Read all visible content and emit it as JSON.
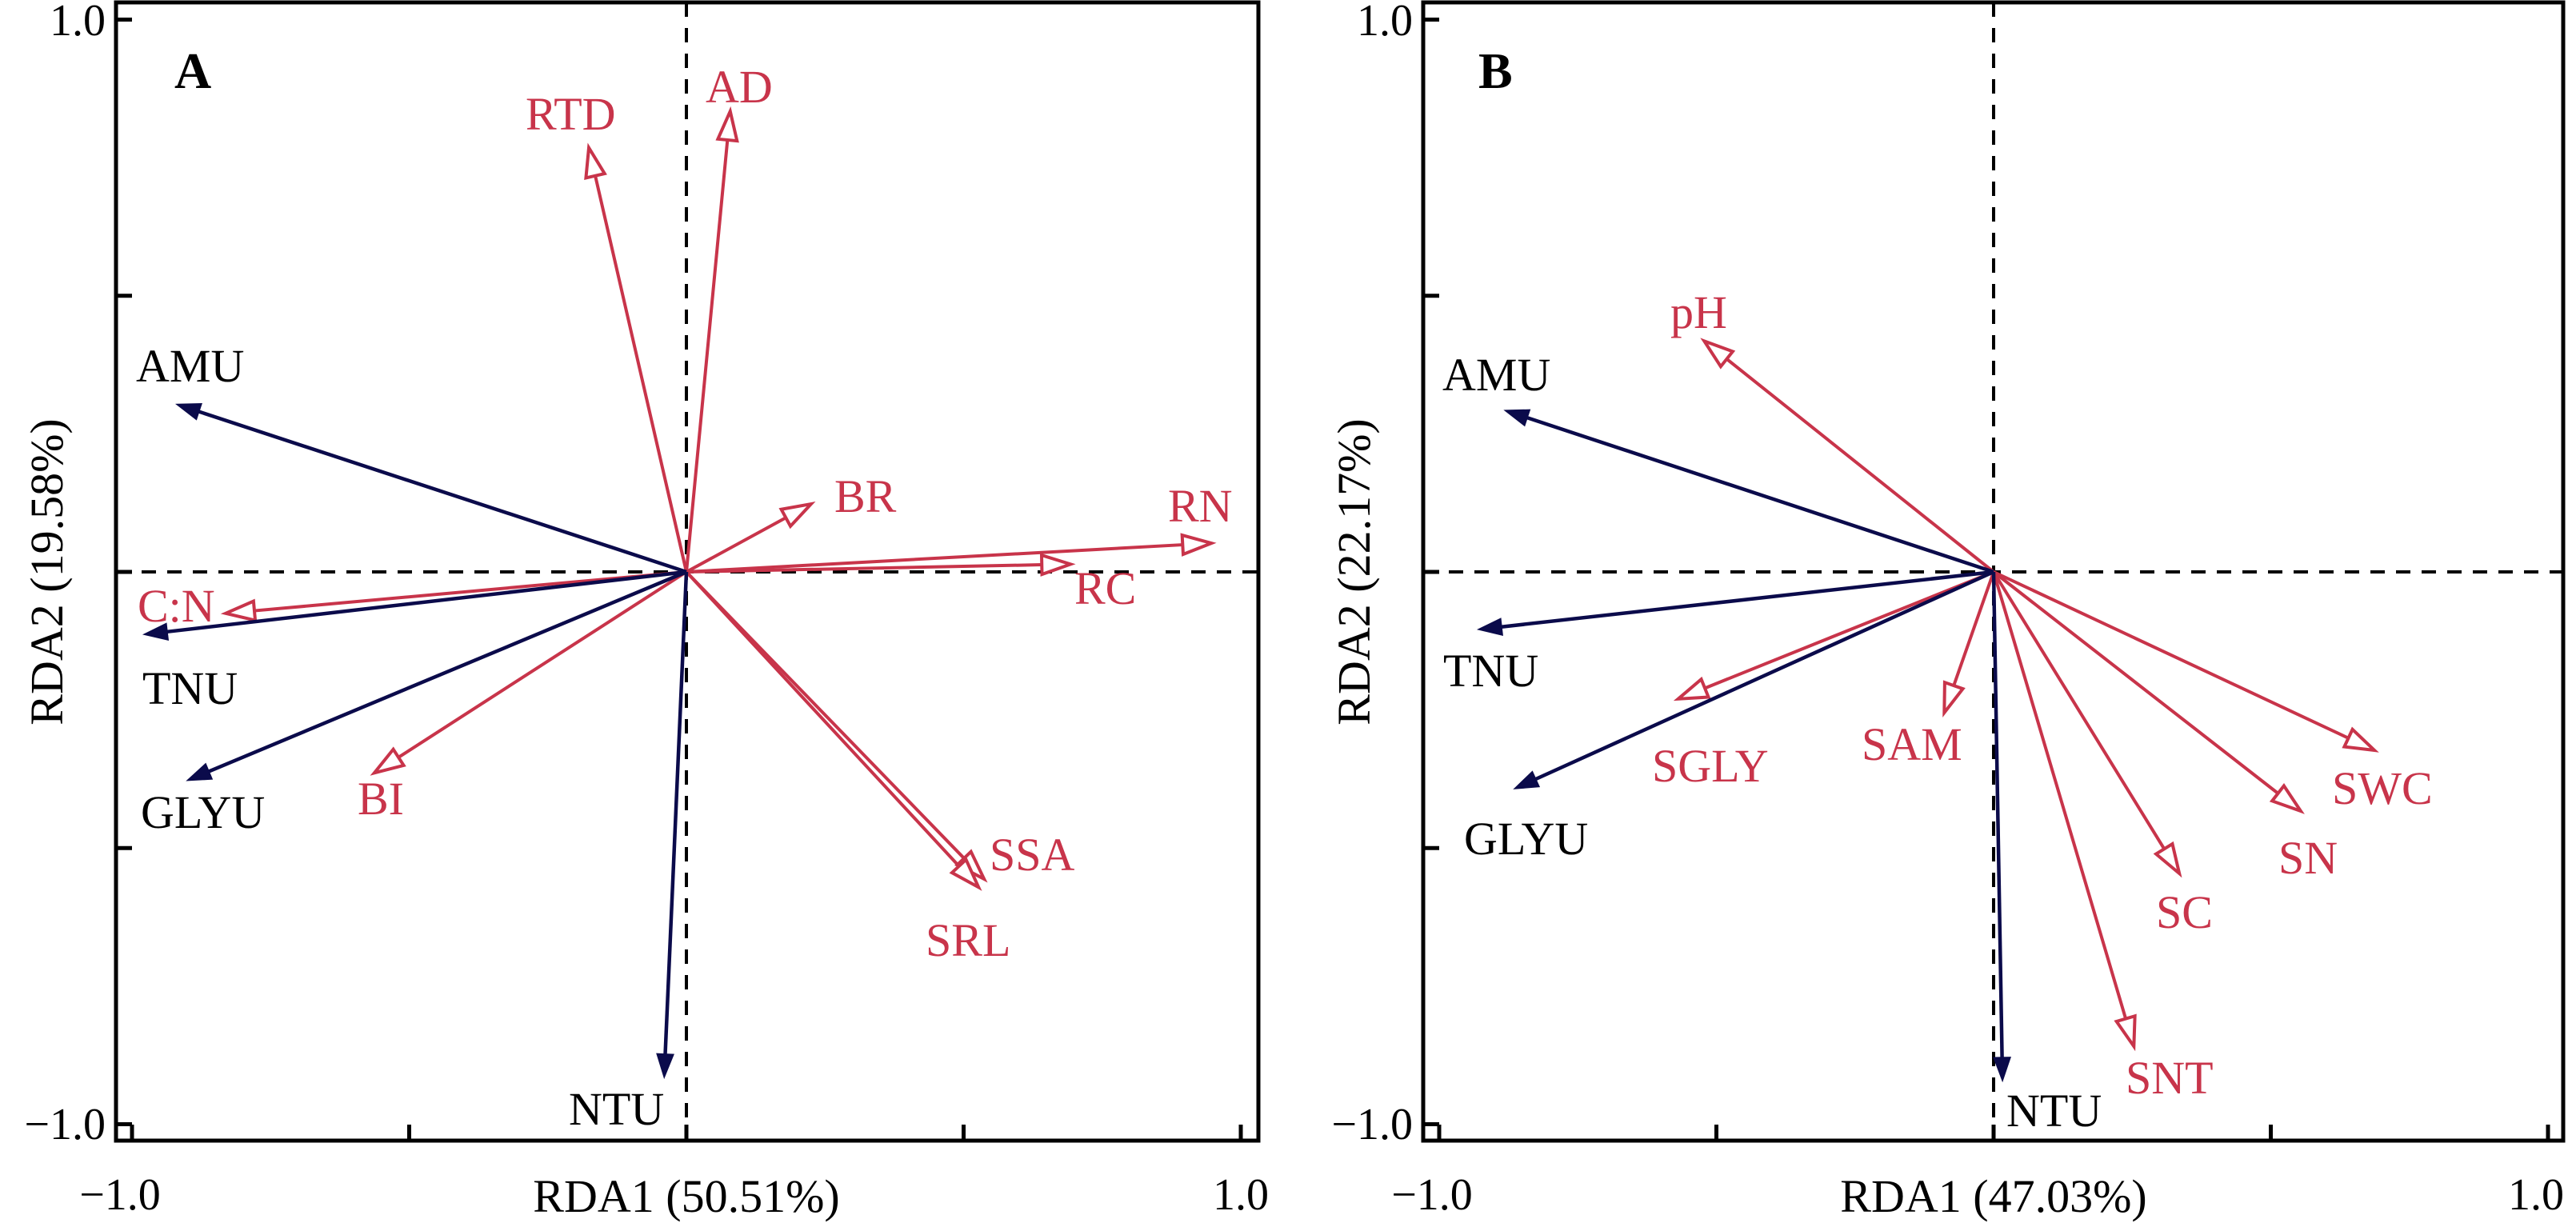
{
  "colors": {
    "response": "#0B0B4B",
    "explanatory": "#C8344A",
    "axis": "#000000"
  },
  "chart_data": [
    {
      "type": "biplot",
      "panel": "A",
      "xlabel": "RDA1 (50.51%)",
      "ylabel": "RDA2 (19.58%)",
      "xlim": [
        -1.0,
        1.0
      ],
      "ylim": [
        -1.0,
        1.0
      ],
      "xticks": [
        -1.0,
        -0.5,
        0,
        0.5,
        1.0
      ],
      "yticks": [
        -1.0,
        -0.5,
        0,
        0.5,
        1.0
      ],
      "xtick_labels": {
        "-1.0": "−1.0",
        "1.0": "1.0"
      },
      "ytick_labels": {
        "-1.0": "−1.0",
        "1.0": "1.0"
      },
      "zero_lines": "dashed",
      "response_vectors": [
        {
          "name": "AMU",
          "x": -0.918,
          "y": 0.303
        },
        {
          "name": "TNU",
          "x": -0.977,
          "y": -0.113
        },
        {
          "name": "GLYU",
          "x": -0.899,
          "y": -0.377
        },
        {
          "name": "NTU",
          "x": -0.04,
          "y": -0.914
        }
      ],
      "explanatory_vectors": [
        {
          "name": "RTD",
          "x": -0.176,
          "y": 0.768
        },
        {
          "name": "AD",
          "x": 0.079,
          "y": 0.834
        },
        {
          "name": "BR",
          "x": 0.225,
          "y": 0.123
        },
        {
          "name": "RN",
          "x": 0.947,
          "y": 0.052
        },
        {
          "name": "RC",
          "x": 0.693,
          "y": 0.014
        },
        {
          "name": "C:N",
          "x": -0.831,
          "y": -0.075
        },
        {
          "name": "BI",
          "x": -0.563,
          "y": -0.364
        },
        {
          "name": "SSA",
          "x": 0.537,
          "y": -0.556
        },
        {
          "name": "SRL",
          "x": 0.527,
          "y": -0.571
        }
      ]
    },
    {
      "type": "biplot",
      "panel": "B",
      "xlabel": "RDA1 (47.03%)",
      "ylabel": "RDA2 (22.17%)",
      "xlim": [
        -1.0,
        1.0
      ],
      "ylim": [
        -1.0,
        1.0
      ],
      "xticks": [
        -1.0,
        -0.5,
        0,
        0.5,
        1.0
      ],
      "yticks": [
        -1.0,
        -0.5,
        0,
        0.5,
        1.0
      ],
      "xtick_labels": {
        "-1.0": "−1.0",
        "1.0": "1.0"
      },
      "ytick_labels": {
        "-1.0": "−1.0",
        "1.0": "1.0"
      },
      "zero_lines": "dashed",
      "response_vectors": [
        {
          "name": "AMU",
          "x": -0.88,
          "y": 0.292
        },
        {
          "name": "TNU",
          "x": -0.928,
          "y": -0.104
        },
        {
          "name": "GLYU",
          "x": -0.863,
          "y": -0.392
        },
        {
          "name": "NTU",
          "x": 0.016,
          "y": -0.92
        }
      ],
      "explanatory_vectors": [
        {
          "name": "pH",
          "x": -0.522,
          "y": 0.418
        },
        {
          "name": "SGLY",
          "x": -0.569,
          "y": -0.23
        },
        {
          "name": "SAM",
          "x": -0.089,
          "y": -0.255
        },
        {
          "name": "SWC",
          "x": 0.687,
          "y": -0.323
        },
        {
          "name": "SN",
          "x": 0.554,
          "y": -0.433
        },
        {
          "name": "SC",
          "x": 0.335,
          "y": -0.546
        },
        {
          "name": "SNT",
          "x": 0.253,
          "y": -0.859
        }
      ]
    }
  ]
}
